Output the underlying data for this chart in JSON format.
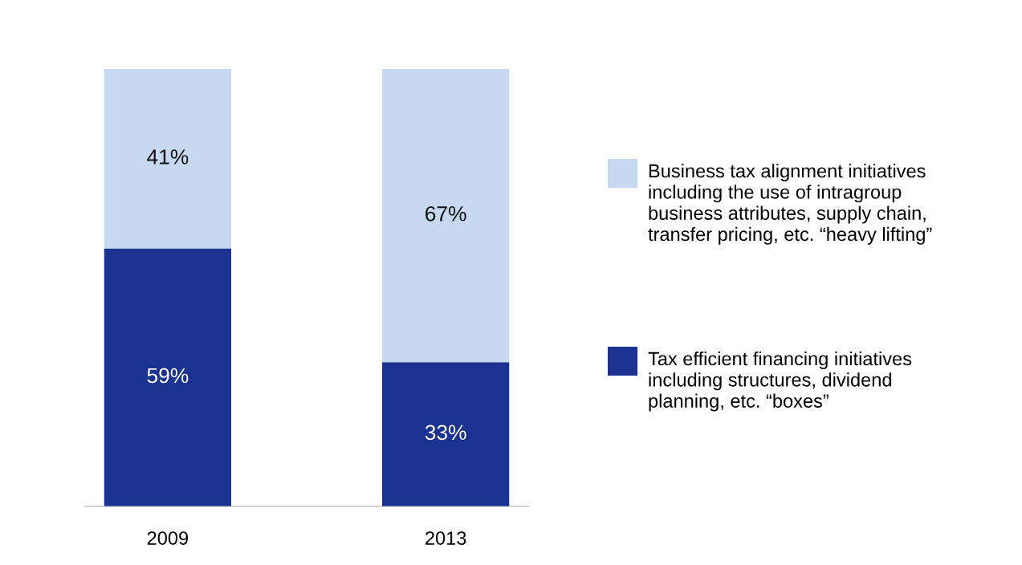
{
  "chart_data": {
    "type": "bar",
    "stacked": true,
    "categories": [
      "2009",
      "2013"
    ],
    "ylim": [
      0,
      100
    ],
    "data_labels": true,
    "legend": "right",
    "grid": false,
    "series": [
      {
        "name": "Tax efficient financing initiatives including structures, dividend planning, etc. “boxes”",
        "color": "#1a3391",
        "values": [
          59,
          33
        ],
        "value_labels": [
          "59%",
          "33%"
        ]
      },
      {
        "name": "Business tax alignment initiatives including the use of intragroup business attributes, supply chain, transfer pricing, etc. “heavy lifting”",
        "color": "#c6d9f0",
        "values": [
          41,
          67
        ],
        "value_labels": [
          "41%",
          "67%"
        ]
      }
    ]
  }
}
